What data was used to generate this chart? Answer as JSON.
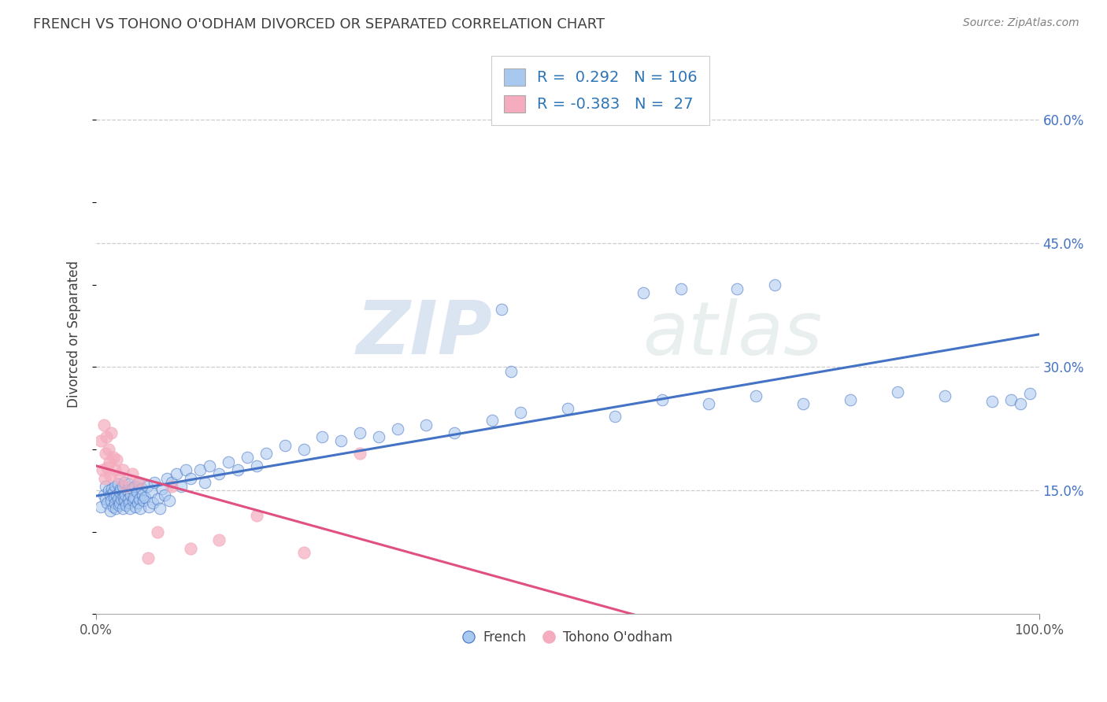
{
  "title": "FRENCH VS TOHONO O'ODHAM DIVORCED OR SEPARATED CORRELATION CHART",
  "source": "Source: ZipAtlas.com",
  "ylabel": "Divorced or Separated",
  "y_tick_labels": [
    "15.0%",
    "30.0%",
    "45.0%",
    "60.0%"
  ],
  "y_tick_vals": [
    0.15,
    0.3,
    0.45,
    0.6
  ],
  "xlim": [
    0.0,
    1.0
  ],
  "ylim": [
    0.0,
    0.68
  ],
  "french_R": 0.292,
  "french_N": 106,
  "tohono_R": -0.383,
  "tohono_N": 27,
  "french_color": "#A8C8F0",
  "tohono_color": "#F4ACBE",
  "french_line_color": "#4472C4",
  "tohono_line_color": "#E05080",
  "legend_french_label": "French",
  "legend_tohono_label": "Tohono O'odham",
  "watermark_zip": "ZIP",
  "watermark_atlas": "atlas",
  "background_color": "#FFFFFF",
  "plot_bg_color": "#FFFFFF",
  "grid_color": "#CCCCCC",
  "title_color": "#404040",
  "source_color": "#808080",
  "french_x": [
    0.005,
    0.008,
    0.01,
    0.01,
    0.012,
    0.013,
    0.015,
    0.015,
    0.016,
    0.017,
    0.018,
    0.018,
    0.019,
    0.02,
    0.02,
    0.021,
    0.022,
    0.023,
    0.023,
    0.024,
    0.025,
    0.025,
    0.026,
    0.027,
    0.028,
    0.028,
    0.029,
    0.03,
    0.03,
    0.031,
    0.032,
    0.033,
    0.034,
    0.035,
    0.035,
    0.036,
    0.037,
    0.038,
    0.039,
    0.04,
    0.041,
    0.042,
    0.043,
    0.044,
    0.045,
    0.046,
    0.047,
    0.048,
    0.049,
    0.05,
    0.052,
    0.054,
    0.056,
    0.058,
    0.06,
    0.062,
    0.065,
    0.068,
    0.07,
    0.073,
    0.075,
    0.078,
    0.08,
    0.085,
    0.09,
    0.095,
    0.1,
    0.11,
    0.115,
    0.12,
    0.13,
    0.14,
    0.15,
    0.16,
    0.17,
    0.18,
    0.2,
    0.22,
    0.24,
    0.26,
    0.28,
    0.3,
    0.32,
    0.35,
    0.38,
    0.42,
    0.45,
    0.5,
    0.55,
    0.6,
    0.65,
    0.7,
    0.75,
    0.8,
    0.85,
    0.9,
    0.95,
    0.97,
    0.98,
    0.99,
    0.43,
    0.44,
    0.58,
    0.62,
    0.68,
    0.72
  ],
  "french_y": [
    0.13,
    0.145,
    0.14,
    0.155,
    0.135,
    0.15,
    0.125,
    0.145,
    0.138,
    0.152,
    0.13,
    0.148,
    0.142,
    0.135,
    0.155,
    0.128,
    0.145,
    0.14,
    0.158,
    0.132,
    0.148,
    0.135,
    0.152,
    0.14,
    0.128,
    0.155,
    0.142,
    0.138,
    0.16,
    0.145,
    0.132,
    0.15,
    0.14,
    0.135,
    0.158,
    0.128,
    0.145,
    0.152,
    0.138,
    0.142,
    0.155,
    0.13,
    0.148,
    0.135,
    0.16,
    0.14,
    0.128,
    0.152,
    0.145,
    0.138,
    0.142,
    0.155,
    0.13,
    0.148,
    0.135,
    0.16,
    0.14,
    0.128,
    0.152,
    0.145,
    0.165,
    0.138,
    0.16,
    0.17,
    0.155,
    0.175,
    0.165,
    0.175,
    0.16,
    0.18,
    0.17,
    0.185,
    0.175,
    0.19,
    0.18,
    0.195,
    0.205,
    0.2,
    0.215,
    0.21,
    0.22,
    0.215,
    0.225,
    0.23,
    0.22,
    0.235,
    0.245,
    0.25,
    0.24,
    0.26,
    0.255,
    0.265,
    0.255,
    0.26,
    0.27,
    0.265,
    0.258,
    0.26,
    0.255,
    0.268,
    0.37,
    0.295,
    0.39,
    0.395,
    0.395,
    0.4
  ],
  "tohono_x": [
    0.005,
    0.007,
    0.008,
    0.009,
    0.01,
    0.011,
    0.012,
    0.013,
    0.014,
    0.015,
    0.016,
    0.018,
    0.02,
    0.022,
    0.025,
    0.028,
    0.032,
    0.038,
    0.045,
    0.055,
    0.065,
    0.08,
    0.1,
    0.13,
    0.17,
    0.22,
    0.28
  ],
  "tohono_y": [
    0.21,
    0.175,
    0.23,
    0.165,
    0.195,
    0.215,
    0.178,
    0.2,
    0.185,
    0.168,
    0.22,
    0.19,
    0.175,
    0.188,
    0.165,
    0.175,
    0.155,
    0.17,
    0.16,
    0.068,
    0.1,
    0.155,
    0.08,
    0.09,
    0.12,
    0.075,
    0.195
  ]
}
